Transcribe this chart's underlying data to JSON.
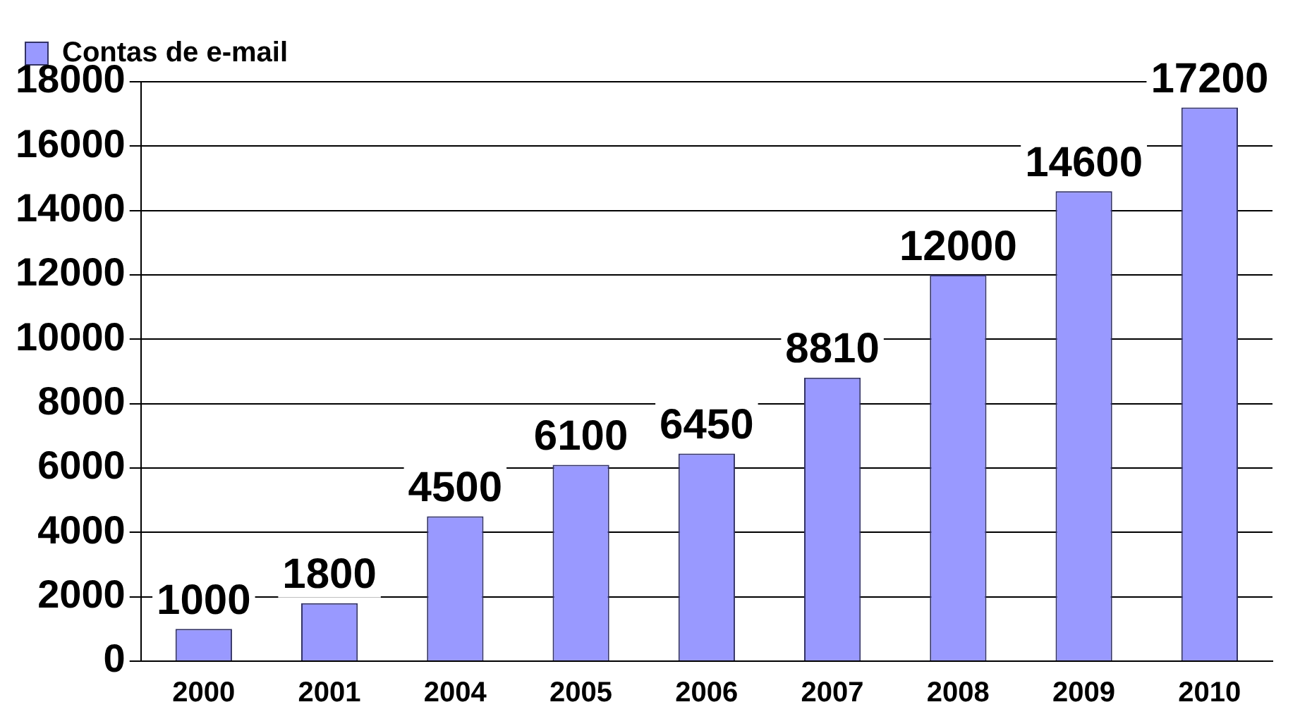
{
  "chart_data": {
    "type": "bar",
    "categories": [
      "2000",
      "2001",
      "2004",
      "2005",
      "2006",
      "2007",
      "2008",
      "2009",
      "2010"
    ],
    "series": [
      {
        "name": "Contas de e-mail",
        "color": "#9999ff",
        "values": [
          1000,
          1800,
          4500,
          6100,
          6450,
          8810,
          12000,
          14600,
          17200
        ]
      }
    ],
    "ylim": [
      0,
      18000
    ],
    "yticks": [
      0,
      2000,
      4000,
      6000,
      8000,
      10000,
      12000,
      14000,
      16000,
      18000
    ],
    "grid": "y",
    "legend": "top left",
    "data_labels": true
  }
}
